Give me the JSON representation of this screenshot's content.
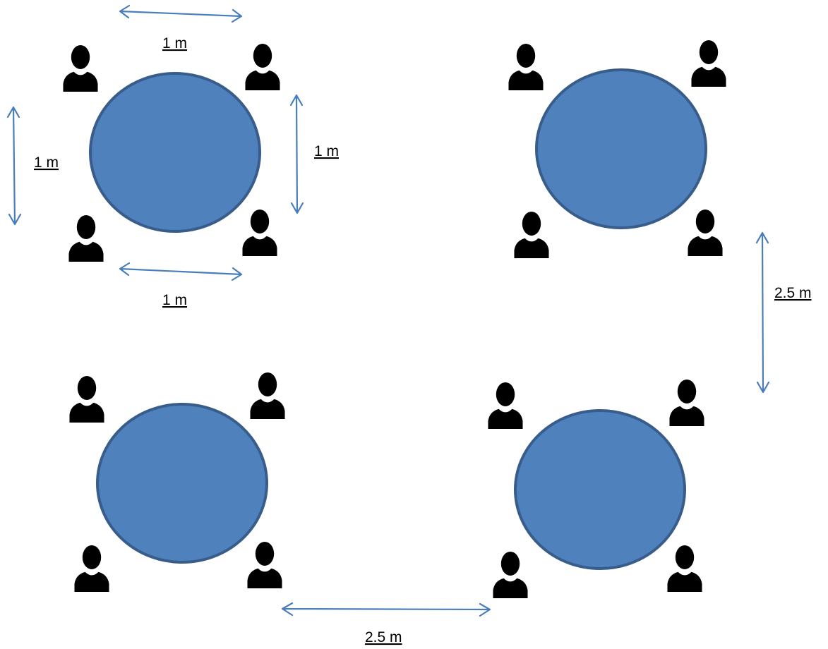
{
  "colors": {
    "table_fill": "#4F81BD",
    "table_stroke": "#385D8A",
    "arrow": "#4A7EBB",
    "person": "#000000",
    "text": "#000000"
  },
  "icons": {
    "person": "person-icon",
    "arrow": "double-arrow-icon"
  },
  "tables": [
    {
      "name": "table-top-left"
    },
    {
      "name": "table-top-right"
    },
    {
      "name": "table-bottom-left"
    },
    {
      "name": "table-bottom-right"
    }
  ],
  "dimensions": [
    {
      "name": "dimension-top-width",
      "label": "1 m"
    },
    {
      "name": "dimension-left-height",
      "label": "1 m"
    },
    {
      "name": "dimension-right-height",
      "label": "1 m"
    },
    {
      "name": "dimension-bottom-width",
      "label": "1 m"
    },
    {
      "name": "dimension-vertical-gap",
      "label": "2.5 m"
    },
    {
      "name": "dimension-horizontal-gap",
      "label": "2.5 m"
    }
  ]
}
